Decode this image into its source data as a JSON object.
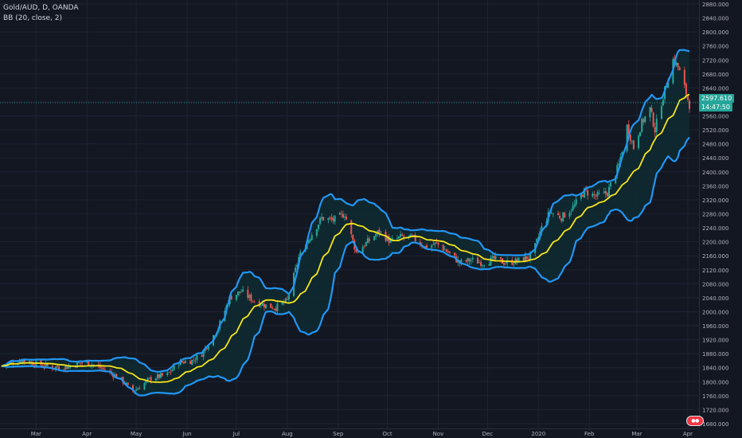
{
  "legend": {
    "symbol": "Gold/AUD, D, OANDA",
    "indicator": "BB (20, close, 2)"
  },
  "colors": {
    "background": "#131722",
    "grid": "#1e2433",
    "up_candle": "#26a69a",
    "down_candle": "#ef5350",
    "basis": "#f5e51b",
    "bands": "#2196f3",
    "band_fill": "#0f2a30",
    "axis_text": "#b2b5be"
  },
  "chart_data": {
    "type": "candlestick",
    "title": "Gold/AUD, D, OANDA",
    "indicator": "BB (20, close, 2)",
    "x_tick_labels": [
      "Mar",
      "Apr",
      "May",
      "Jun",
      "Jul",
      "Aug",
      "Sep",
      "Oct",
      "Nov",
      "Dec",
      "2020",
      "Feb",
      "Mar",
      "Apr"
    ],
    "y_tick_labels": [
      "2880.000",
      "2840.000",
      "2800.000",
      "2760.000",
      "2720.000",
      "2680.000",
      "2640.000",
      "2600.000",
      "2560.000",
      "2520.000",
      "2480.000",
      "2440.000",
      "2400.000",
      "2360.000",
      "2320.000",
      "2280.000",
      "2240.000",
      "2200.000",
      "2160.000",
      "2120.000",
      "2080.000",
      "2040.000",
      "2000.000",
      "1960.000",
      "1920.000",
      "1880.000",
      "1840.000",
      "1800.000",
      "1760.000",
      "1720.000",
      "1680.000"
    ],
    "ylim": [
      1680,
      2880
    ],
    "grid": true,
    "x_range": [
      "2019-02-08",
      "2020-04-02"
    ],
    "close_path": [
      [
        "2019-02-08",
        1845
      ],
      [
        "2019-02-20",
        1862
      ],
      [
        "2019-03-01",
        1852
      ],
      [
        "2019-03-10",
        1842
      ],
      [
        "2019-03-20",
        1842
      ],
      [
        "2019-03-31",
        1858
      ],
      [
        "2019-04-10",
        1838
      ],
      [
        "2019-04-18",
        1818
      ],
      [
        "2019-04-24",
        1798
      ],
      [
        "2019-04-28",
        1770
      ],
      [
        "2019-05-03",
        1785
      ],
      [
        "2019-05-10",
        1810
      ],
      [
        "2019-05-20",
        1820
      ],
      [
        "2019-05-27",
        1855
      ],
      [
        "2019-06-04",
        1860
      ],
      [
        "2019-06-10",
        1880
      ],
      [
        "2019-06-20",
        1955
      ],
      [
        "2019-06-27",
        2040
      ],
      [
        "2019-07-04",
        2058
      ],
      [
        "2019-07-12",
        2030
      ],
      [
        "2019-07-19",
        2018
      ],
      [
        "2019-07-25",
        2012
      ],
      [
        "2019-08-01",
        2032
      ],
      [
        "2019-08-08",
        2155
      ],
      [
        "2019-08-15",
        2215
      ],
      [
        "2019-08-22",
        2268
      ],
      [
        "2019-08-29",
        2262
      ],
      [
        "2019-09-05",
        2280
      ],
      [
        "2019-09-12",
        2170
      ],
      [
        "2019-09-19",
        2200
      ],
      [
        "2019-09-26",
        2230
      ],
      [
        "2019-10-03",
        2200
      ],
      [
        "2019-10-10",
        2215
      ],
      [
        "2019-10-17",
        2210
      ],
      [
        "2019-10-24",
        2185
      ],
      [
        "2019-10-31",
        2195
      ],
      [
        "2019-11-07",
        2170
      ],
      [
        "2019-11-14",
        2140
      ],
      [
        "2019-11-21",
        2148
      ],
      [
        "2019-11-28",
        2140
      ],
      [
        "2019-12-05",
        2150
      ],
      [
        "2019-12-12",
        2140
      ],
      [
        "2019-12-19",
        2145
      ],
      [
        "2019-12-28",
        2160
      ],
      [
        "2020-01-03",
        2240
      ],
      [
        "2020-01-08",
        2285
      ],
      [
        "2020-01-15",
        2270
      ],
      [
        "2020-01-22",
        2298
      ],
      [
        "2020-01-29",
        2345
      ],
      [
        "2020-02-05",
        2330
      ],
      [
        "2020-02-12",
        2340
      ],
      [
        "2020-02-19",
        2420
      ],
      [
        "2020-02-24",
        2530
      ],
      [
        "2020-02-28",
        2470
      ],
      [
        "2020-03-04",
        2540
      ],
      [
        "2020-03-09",
        2580
      ],
      [
        "2020-03-12",
        2520
      ],
      [
        "2020-03-16",
        2600
      ],
      [
        "2020-03-19",
        2650
      ],
      [
        "2020-03-23",
        2720
      ],
      [
        "2020-03-26",
        2700
      ],
      [
        "2020-03-30",
        2640
      ],
      [
        "2020-04-02",
        2592
      ]
    ],
    "last_price": 2597.61,
    "last_price_label": "2597.610",
    "countdown_label": "14:47:50"
  }
}
